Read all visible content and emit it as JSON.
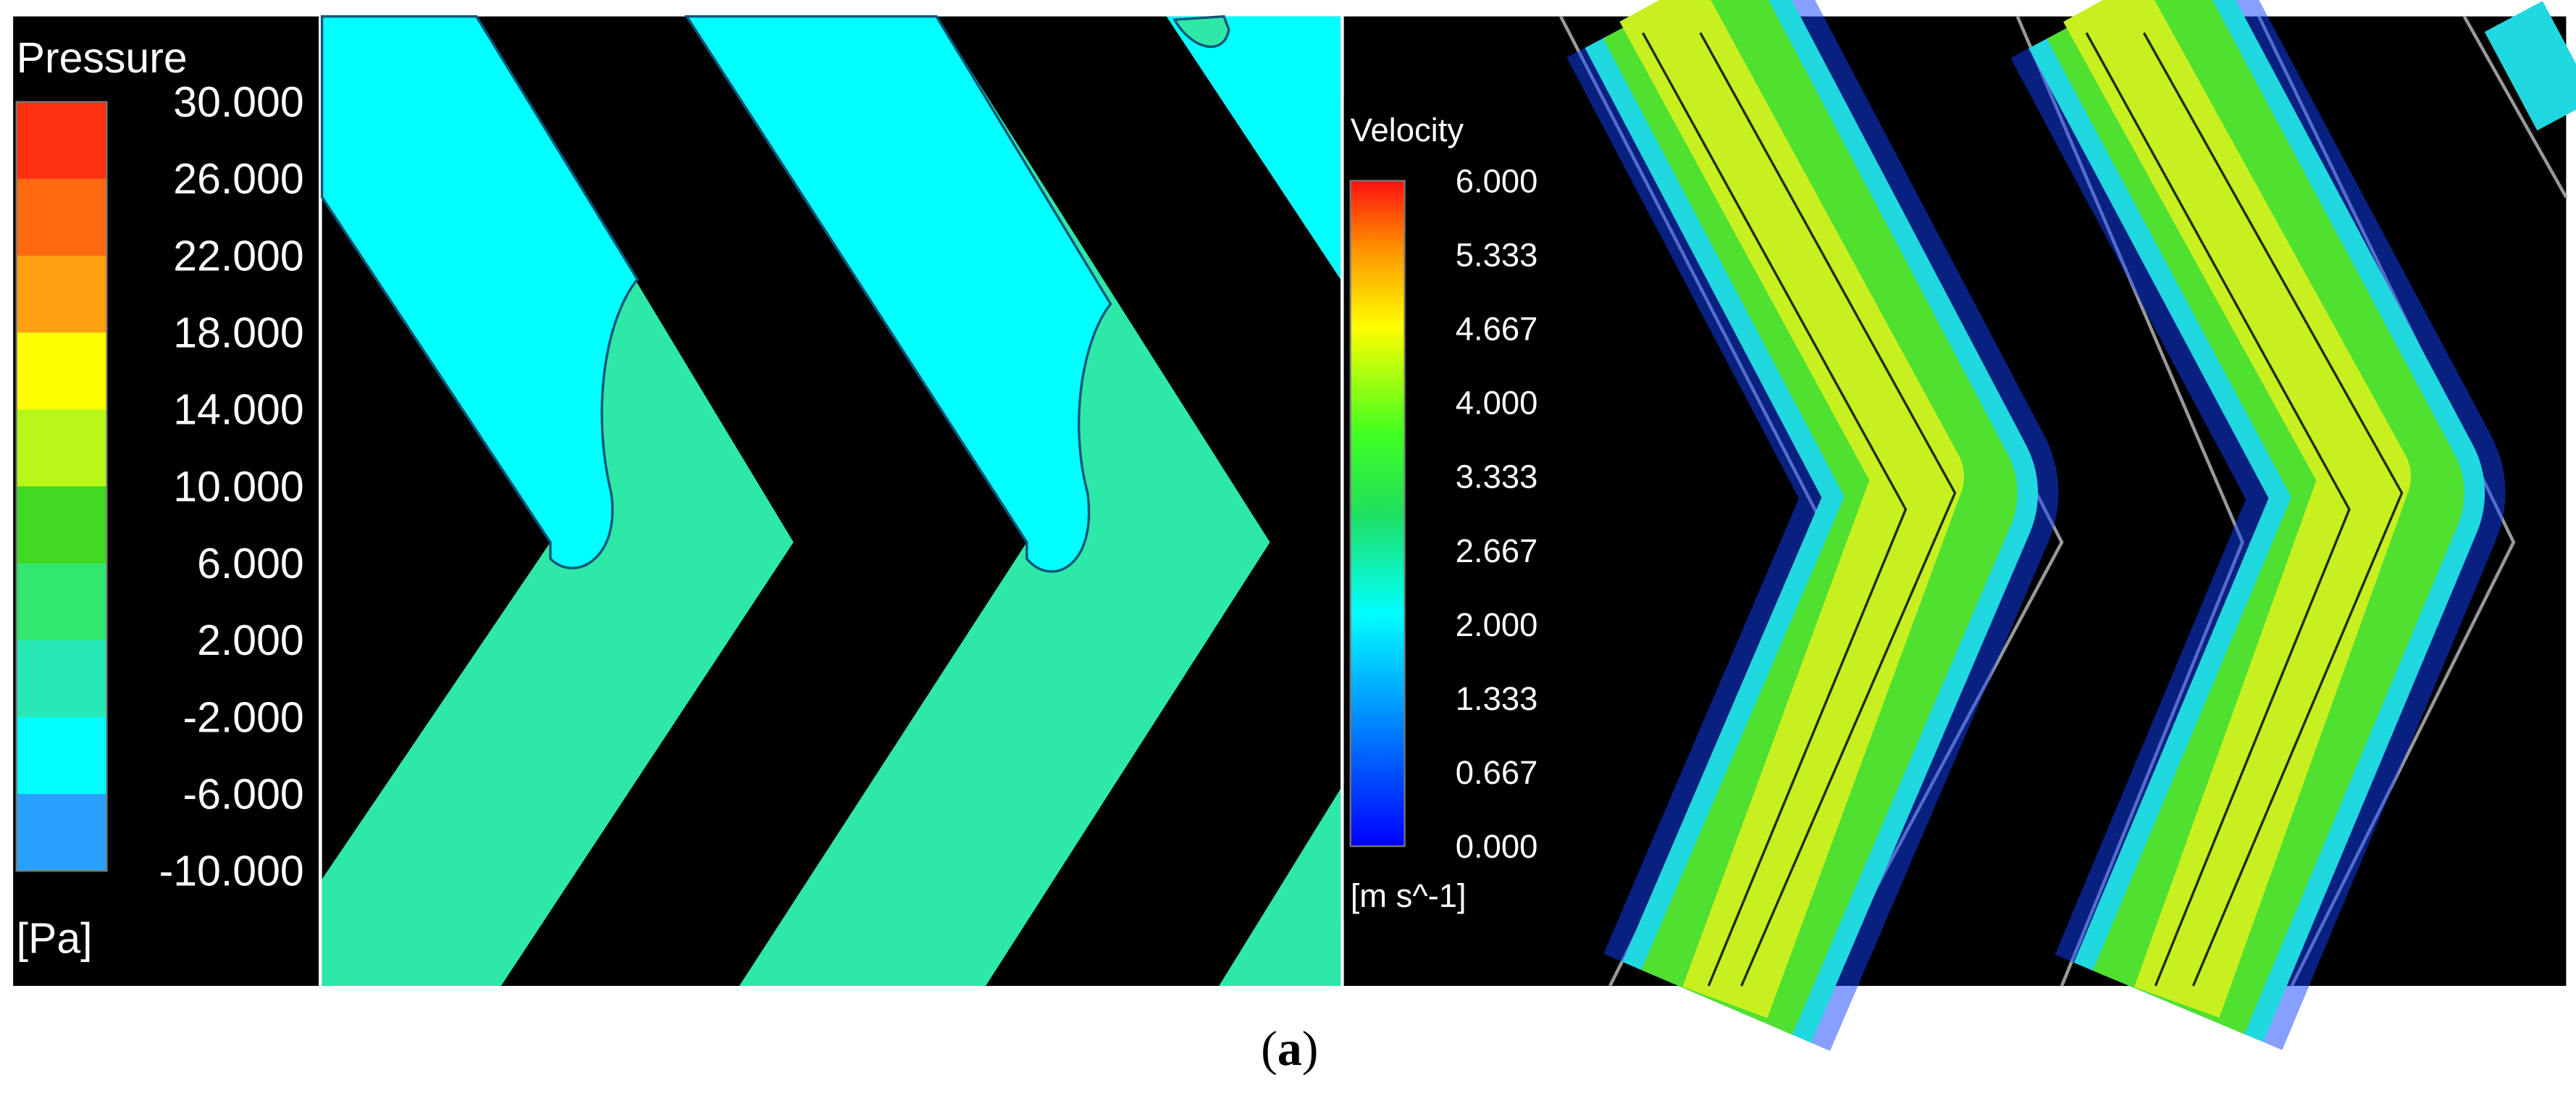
{
  "pressure_legend": {
    "title": "Pressure",
    "unit": "[Pa]",
    "ticks": [
      "30.000",
      "26.000",
      "22.000",
      "18.000",
      "14.000",
      "10.000",
      "6.000",
      "2.000",
      "-2.000",
      "-6.000",
      "-10.000"
    ]
  },
  "velocity_legend": {
    "title": "Velocity",
    "unit": "[m s^-1]",
    "ticks": [
      "6.000",
      "5.333",
      "4.667",
      "4.000",
      "3.333",
      "2.667",
      "2.000",
      "1.333",
      "0.667",
      "0.000"
    ]
  },
  "caption": {
    "parts": [
      "(",
      "a",
      ")"
    ]
  }
}
